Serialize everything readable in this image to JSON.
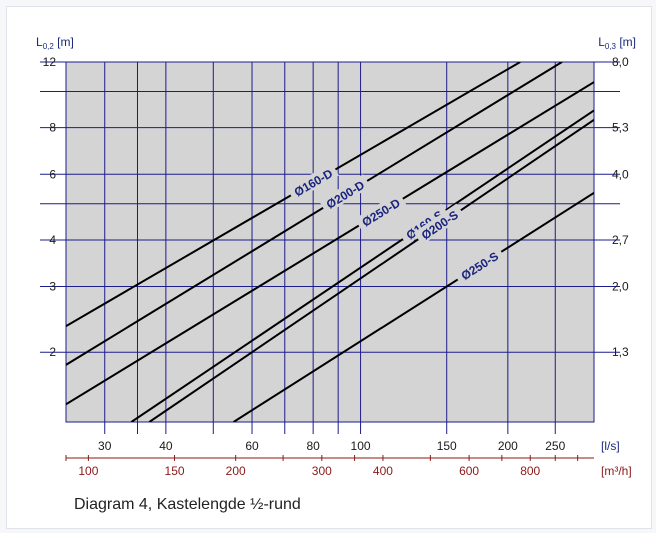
{
  "caption": "Diagram 4, Kastelengde ½-rund",
  "colors": {
    "plot_bg": "#d4d4d4",
    "grid": "#1c1c8c",
    "axis_label": "#1a2a7a",
    "m3h_axis": "#8b1a1a",
    "series_line": "#000000",
    "series_label": "#1a237e"
  },
  "chart_data": {
    "type": "line",
    "x_scale": "log",
    "y_scale": "log",
    "xlim": [
      25,
      300
    ],
    "ylim": [
      1.3,
      12
    ],
    "x_axis": {
      "unit": "[l/s]",
      "tick_labels": [
        "30",
        "40",
        "60",
        "80",
        "100",
        "150",
        "200",
        "250"
      ],
      "tick_values": [
        30,
        40,
        60,
        80,
        100,
        150,
        200,
        250
      ],
      "minor_lines": [
        35,
        50,
        70,
        90
      ]
    },
    "x2_axis": {
      "unit": "[m³/h]",
      "tick_labels": [
        "100",
        "150",
        "200",
        "300",
        "400",
        "600",
        "800"
      ],
      "tick_values": [
        100,
        150,
        200,
        300,
        400,
        600,
        800
      ]
    },
    "y_axis": {
      "label": "L0,2 [m]",
      "label_main": "L",
      "label_sub": "0,2",
      "label_unit": " [m]",
      "tick_labels": [
        "12",
        "8",
        "6",
        "4",
        "3",
        "2"
      ],
      "tick_values": [
        12,
        8,
        6,
        4,
        3,
        2
      ],
      "extra_lines": [
        10,
        5
      ]
    },
    "y2_axis": {
      "label": "L0,3 [m]",
      "label_main": "L",
      "label_sub": "0,3",
      "label_unit": " [m]",
      "tick_labels": [
        "8,0",
        "5,3",
        "4,0",
        "2,7",
        "2,0",
        "1,3"
      ],
      "tick_values": [
        12,
        8,
        6,
        4,
        3,
        2
      ]
    },
    "series": [
      {
        "name": "Ø160-D",
        "points": [
          [
            25,
            2.35
          ],
          [
            212,
            12
          ]
        ],
        "label_at": 80
      },
      {
        "name": "Ø200-D",
        "points": [
          [
            25,
            1.85
          ],
          [
            258,
            12
          ]
        ],
        "label_at": 93
      },
      {
        "name": "Ø250-D",
        "points": [
          [
            25,
            1.45
          ],
          [
            300,
            10.6
          ]
        ],
        "label_at": 110
      },
      {
        "name": "Ø160-S",
        "points": [
          [
            34,
            1.3
          ],
          [
            300,
            8.9
          ]
        ],
        "label_at": 135
      },
      {
        "name": "Ø200-S",
        "points": [
          [
            37,
            1.3
          ],
          [
            300,
            8.4
          ]
        ],
        "label_at": 145
      },
      {
        "name": "Ø250-S",
        "points": [
          [
            55,
            1.3
          ],
          [
            300,
            5.35
          ]
        ],
        "label_at": 175
      }
    ]
  }
}
